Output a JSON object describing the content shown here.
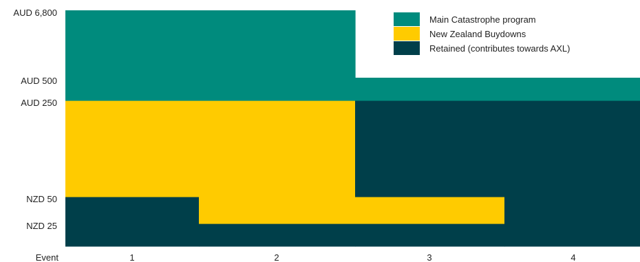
{
  "chart_data": {
    "type": "bar",
    "subtype": "stacked-layer-tower",
    "categories": [
      "1",
      "2",
      "3",
      "4"
    ],
    "xlabel": "Event",
    "y_axis_scale": "ordinal-layer-attachment-points",
    "y_ticks": [
      {
        "key": "nzd25",
        "label": "NZD 25"
      },
      {
        "key": "nzd50",
        "label": "NZD 50"
      },
      {
        "key": "aud250",
        "label": "AUD 250"
      },
      {
        "key": "aud500",
        "label": "AUD 500"
      },
      {
        "key": "aud6800",
        "label": "AUD 6,800"
      }
    ],
    "series": [
      {
        "key": "main",
        "name": "Main Catastrophe program",
        "color": "#008b7d"
      },
      {
        "key": "nz",
        "name": "New Zealand Buydowns",
        "color": "#ffcb00"
      },
      {
        "key": "ret",
        "name": "Retained (contributes towards AXL)",
        "color": "#003f4a"
      }
    ],
    "layers": [
      {
        "event": "1",
        "series": "ret",
        "from": "base",
        "to": "nzd50"
      },
      {
        "event": "1",
        "series": "nz",
        "from": "nzd50",
        "to": "aud250"
      },
      {
        "event": "1",
        "series": "main",
        "from": "aud250",
        "to": "aud6800"
      },
      {
        "event": "2",
        "series": "ret",
        "from": "base",
        "to": "nzd25"
      },
      {
        "event": "2",
        "series": "nz",
        "from": "nzd25",
        "to": "aud250"
      },
      {
        "event": "2",
        "series": "main",
        "from": "aud250",
        "to": "aud6800"
      },
      {
        "event": "3",
        "series": "ret",
        "from": "base",
        "to": "nzd25"
      },
      {
        "event": "3",
        "series": "nz",
        "from": "nzd25",
        "to": "nzd50"
      },
      {
        "event": "3",
        "series": "ret",
        "from": "nzd50",
        "to": "aud250"
      },
      {
        "event": "3",
        "series": "main",
        "from": "aud250",
        "to": "aud500"
      },
      {
        "event": "4",
        "series": "ret",
        "from": "base",
        "to": "aud250"
      },
      {
        "event": "4",
        "series": "main",
        "from": "aud250",
        "to": "aud500"
      }
    ],
    "legend_position": "top-right",
    "grid": false
  }
}
